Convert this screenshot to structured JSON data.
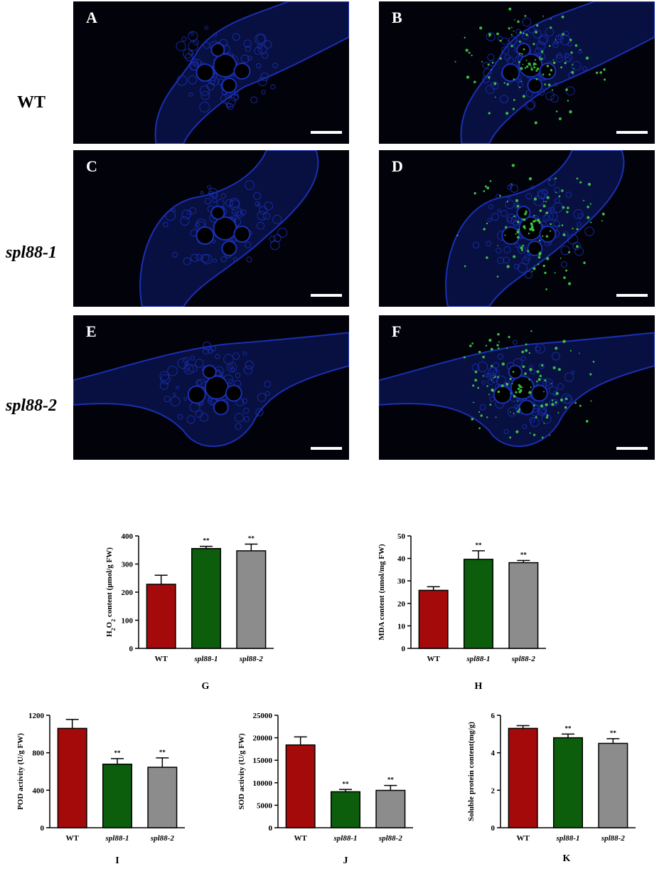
{
  "figure": {
    "rows": [
      {
        "label": "WT",
        "italic": false
      },
      {
        "label": "spl88-1",
        "italic": true
      },
      {
        "label": "spl88-2",
        "italic": true
      }
    ],
    "panels": [
      {
        "letter": "A",
        "fluorescence": false
      },
      {
        "letter": "B",
        "fluorescence": true
      },
      {
        "letter": "C",
        "fluorescence": false
      },
      {
        "letter": "D",
        "fluorescence": true
      },
      {
        "letter": "E",
        "fluorescence": false
      },
      {
        "letter": "F",
        "fluorescence": true
      }
    ],
    "colors": {
      "WT": "#a50a0a",
      "spl88-1": "#0c5e0c",
      "spl88-2": "#8c8c8c",
      "tissue": "#1b2fb3",
      "fluor": "#3fd14a"
    }
  },
  "chart_data": [
    {
      "type": "bar",
      "panel": "G",
      "categories": [
        "WT",
        "spl88-1",
        "spl88-2"
      ],
      "values": [
        228,
        355,
        347
      ],
      "errors": [
        32,
        8,
        24
      ],
      "significance": [
        "",
        "**",
        "**"
      ],
      "ylabel": "H2O2 content (μmol/g FW)",
      "ylabel_parts": [
        "H",
        "2",
        "O",
        "2",
        " content (μmol/g FW)"
      ],
      "ylim": [
        0,
        400
      ],
      "yticks": [
        0,
        100,
        200,
        300,
        400
      ]
    },
    {
      "type": "bar",
      "panel": "H",
      "categories": [
        "WT",
        "spl88-1",
        "spl88-2"
      ],
      "values": [
        25.8,
        39.6,
        38.1
      ],
      "errors": [
        1.6,
        3.8,
        1.0
      ],
      "significance": [
        "",
        "**",
        "**"
      ],
      "ylabel": "MDA content (nmol/mg FW)",
      "ylim": [
        0,
        50
      ],
      "yticks": [
        0,
        10,
        20,
        30,
        40,
        50
      ]
    },
    {
      "type": "bar",
      "panel": "I",
      "categories": [
        "WT",
        "spl88-1",
        "spl88-2"
      ],
      "values": [
        1060,
        678,
        645
      ],
      "errors": [
        95,
        60,
        100
      ],
      "significance": [
        "",
        "**",
        "**"
      ],
      "ylabel": "POD activity (U/g FW)",
      "ylim": [
        0,
        1200
      ],
      "yticks": [
        0,
        400,
        800,
        1200
      ]
    },
    {
      "type": "bar",
      "panel": "J",
      "categories": [
        "WT",
        "spl88-1",
        "spl88-2"
      ],
      "values": [
        18400,
        8000,
        8300
      ],
      "errors": [
        1800,
        500,
        1100
      ],
      "significance": [
        "",
        "**",
        "**"
      ],
      "ylabel": "SOD activity (U/g FW)",
      "ylim": [
        0,
        25000
      ],
      "yticks": [
        0,
        5000,
        10000,
        15000,
        20000,
        25000
      ]
    },
    {
      "type": "bar",
      "panel": "K",
      "categories": [
        "WT",
        "spl88-1",
        "spl88-2"
      ],
      "values": [
        5.3,
        4.8,
        4.5
      ],
      "errors": [
        0.15,
        0.2,
        0.25
      ],
      "significance": [
        "",
        "**",
        "**"
      ],
      "ylabel": "Soluble protein content(mg/g)",
      "ylim": [
        0,
        6
      ],
      "yticks": [
        0,
        2,
        4,
        6
      ]
    }
  ]
}
